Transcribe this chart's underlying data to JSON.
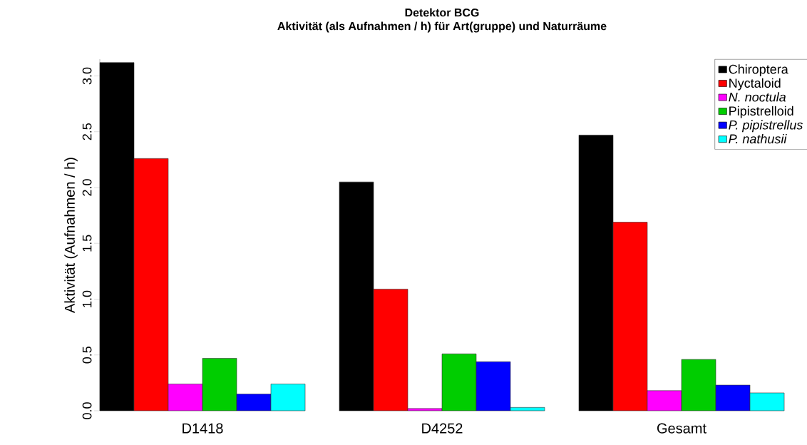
{
  "chart_data": {
    "type": "bar",
    "title": "Detektor BCG",
    "subtitle": "Aktivität (als Aufnahmen / h) für Art(gruppe) und Naturräume",
    "ylabel": "Aktivität (Aufnahmen / h)",
    "categories": [
      "D1418",
      "D4252",
      "Gesamt"
    ],
    "series": [
      {
        "name": "Chiroptera",
        "color": "#000000",
        "values": [
          3.12,
          2.05,
          2.47
        ]
      },
      {
        "name": "Nyctaloid",
        "color": "#ff0000",
        "values": [
          2.26,
          1.09,
          1.69
        ]
      },
      {
        "name": "*N. noctula*",
        "color": "#ff00ff",
        "values": [
          0.24,
          0.02,
          0.18
        ]
      },
      {
        "name": "Pipistrelloid",
        "color": "#00cd00",
        "values": [
          0.47,
          0.51,
          0.46
        ]
      },
      {
        "name": "*P. pipistrellus*",
        "color": "#0000ff",
        "values": [
          0.15,
          0.44,
          0.23
        ]
      },
      {
        "name": "*P. nathusii*",
        "color": "#00ffff",
        "values": [
          0.24,
          0.03,
          0.16
        ]
      }
    ],
    "ylim": [
      0,
      3.15
    ],
    "yticks": [
      {
        "value": 0,
        "label": "0.0"
      },
      0.5,
      {
        "value": 1,
        "label": "1.0"
      },
      1.5,
      {
        "value": 2,
        "label": "2.0"
      },
      2.5,
      {
        "value": 3,
        "label": "3.0"
      }
    ],
    "legend": "top right"
  }
}
